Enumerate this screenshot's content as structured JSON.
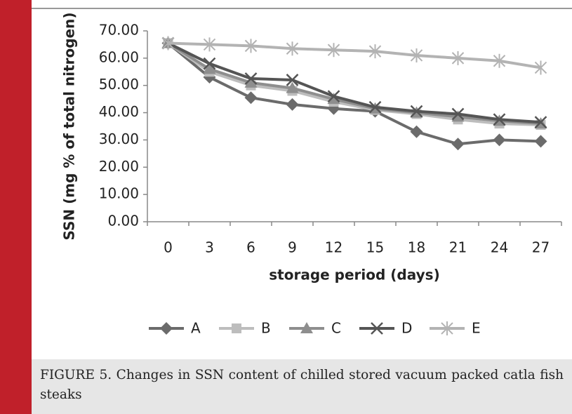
{
  "chart_data": {
    "type": "line",
    "caption": "FIGURE 5. Changes in SSN content of chilled stored vacuum packed catla fish steaks",
    "xlabel": "storage period (days)",
    "ylabel": "SSN (mg % of total nitrogen)",
    "categories": [
      "0",
      "3",
      "6",
      "9",
      "12",
      "15",
      "18",
      "21",
      "24",
      "27"
    ],
    "series": [
      {
        "name": "A",
        "color": "#6b6b6b",
        "marker": "diamond",
        "values": [
          65.5,
          53,
          45.5,
          43,
          41.5,
          40.5,
          33,
          28.5,
          30,
          29.5
        ]
      },
      {
        "name": "B",
        "color": "#bdbdbd",
        "marker": "square",
        "values": [
          65.5,
          55,
          50,
          48,
          44,
          41,
          39.5,
          37.5,
          36,
          35.5
        ]
      },
      {
        "name": "C",
        "color": "#8e8e8e",
        "marker": "triangle",
        "values": [
          65.5,
          56,
          51,
          49,
          45,
          41.5,
          40,
          38.5,
          37,
          36
        ]
      },
      {
        "name": "D",
        "color": "#555555",
        "marker": "x",
        "values": [
          65.5,
          58,
          52.5,
          52,
          46,
          42,
          40.5,
          39.5,
          37.5,
          36.5
        ]
      },
      {
        "name": "E",
        "color": "#b3b3b3",
        "marker": "star",
        "values": [
          65.5,
          65,
          64.5,
          63.5,
          63,
          62.5,
          61,
          60,
          59,
          56.5
        ]
      }
    ],
    "ylim": [
      0,
      70
    ],
    "yticks": [
      {
        "value": 0,
        "label": "0.00"
      },
      {
        "value": 10,
        "label": "10.00"
      },
      {
        "value": 20,
        "label": "20.00"
      },
      {
        "value": 30,
        "label": "30.00"
      },
      {
        "value": 40,
        "label": "40.00"
      },
      {
        "value": 50,
        "label": "50.00"
      },
      {
        "value": 60,
        "label": "60.00"
      },
      {
        "value": 70,
        "label": "70.00"
      }
    ],
    "legend": "bottom"
  }
}
